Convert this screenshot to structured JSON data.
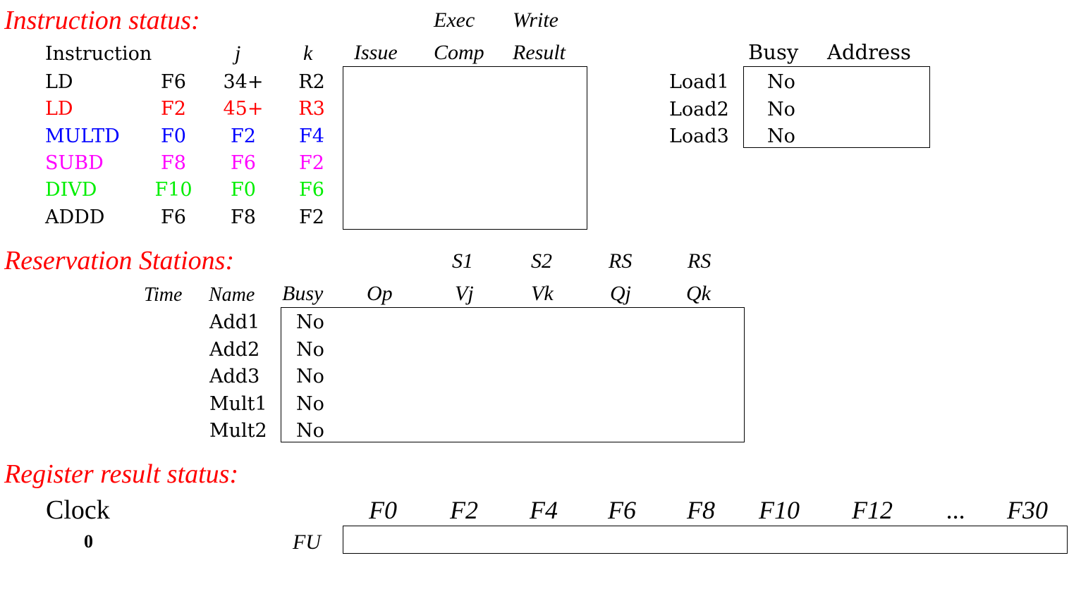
{
  "colors": {
    "section_title": "#ff0000",
    "row_black": "#000000",
    "row_red": "#ff0000",
    "row_blue": "#0000ff",
    "row_magenta": "#ff00ff",
    "row_green": "#00ee00"
  },
  "instruction_status": {
    "title": "Instruction status:",
    "headers": {
      "instruction": "Instruction",
      "j": "j",
      "k": "k",
      "issue": "Issue",
      "exec_top": "Exec",
      "exec_bottom": "Comp",
      "write_top": "Write",
      "write_bottom": "Result"
    },
    "rows": [
      {
        "op": "LD",
        "dest": "F6",
        "j": "34+",
        "k": "R2",
        "color": "#000000"
      },
      {
        "op": "LD",
        "dest": "F2",
        "j": "45+",
        "k": "R3",
        "color": "#ff0000"
      },
      {
        "op": "MULTD",
        "dest": "F0",
        "j": "F2",
        "k": "F4",
        "color": "#0000ff"
      },
      {
        "op": "SUBD",
        "dest": "F8",
        "j": "F6",
        "k": "F2",
        "color": "#ff00ff"
      },
      {
        "op": "DIVD",
        "dest": "F10",
        "j": "F0",
        "k": "F6",
        "color": "#00ee00"
      },
      {
        "op": "ADDD",
        "dest": "F6",
        "j": "F8",
        "k": "F2",
        "color": "#000000"
      }
    ]
  },
  "load_buffers": {
    "headers": {
      "busy": "Busy",
      "address": "Address"
    },
    "rows": [
      {
        "name": "Load1",
        "busy": "No"
      },
      {
        "name": "Load2",
        "busy": "No"
      },
      {
        "name": "Load3",
        "busy": "No"
      }
    ]
  },
  "reservation_stations": {
    "title": "Reservation Stations:",
    "headers": {
      "time": "Time",
      "name": "Name",
      "busy": "Busy",
      "op": "Op",
      "s1_top": "S1",
      "s1_bottom": "Vj",
      "s2_top": "S2",
      "s2_bottom": "Vk",
      "rsj_top": "RS",
      "rsj_bottom": "Qj",
      "rsk_top": "RS",
      "rsk_bottom": "Qk"
    },
    "rows": [
      {
        "name": "Add1",
        "busy": "No"
      },
      {
        "name": "Add2",
        "busy": "No"
      },
      {
        "name": "Add3",
        "busy": "No"
      },
      {
        "name": "Mult1",
        "busy": "No"
      },
      {
        "name": "Mult2",
        "busy": "No"
      }
    ]
  },
  "register_status": {
    "title": "Register result status:",
    "clock_label": "Clock",
    "clock_value": "0",
    "fu_label": "FU",
    "registers": [
      "F0",
      "F2",
      "F4",
      "F6",
      "F8",
      "F10",
      "F12",
      "...",
      "F30"
    ]
  }
}
